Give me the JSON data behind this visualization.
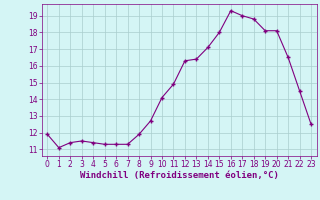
{
  "x": [
    0,
    1,
    2,
    3,
    4,
    5,
    6,
    7,
    8,
    9,
    10,
    11,
    12,
    13,
    14,
    15,
    16,
    17,
    18,
    19,
    20,
    21,
    22,
    23
  ],
  "y": [
    11.9,
    11.1,
    11.4,
    11.5,
    11.4,
    11.3,
    11.3,
    11.3,
    11.9,
    12.7,
    14.1,
    14.9,
    16.3,
    16.4,
    17.1,
    18.0,
    19.3,
    19.0,
    18.8,
    18.1,
    18.1,
    16.5,
    14.5,
    12.5
  ],
  "line_color": "#800080",
  "marker": "+",
  "marker_size": 3,
  "linewidth": 0.8,
  "bg_color": "#d4f5f5",
  "grid_color": "#aacece",
  "xlabel": "Windchill (Refroidissement éolien,°C)",
  "xlabel_fontsize": 6.5,
  "tick_fontsize": 5.5,
  "ylim": [
    10.6,
    19.7
  ],
  "yticks": [
    11,
    12,
    13,
    14,
    15,
    16,
    17,
    18,
    19
  ],
  "xticks": [
    0,
    1,
    2,
    3,
    4,
    5,
    6,
    7,
    8,
    9,
    10,
    11,
    12,
    13,
    14,
    15,
    16,
    17,
    18,
    19,
    20,
    21,
    22,
    23
  ],
  "xlim": [
    -0.5,
    23.5
  ]
}
